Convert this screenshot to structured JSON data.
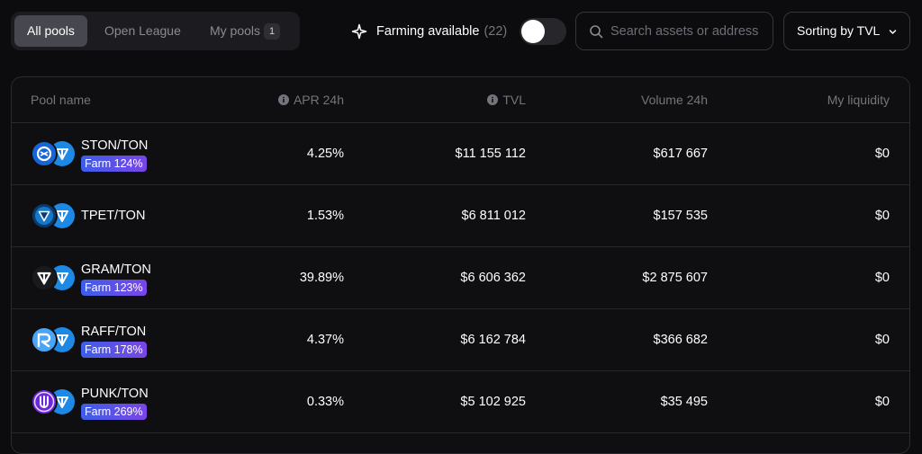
{
  "tabs": [
    {
      "label": "All pools",
      "active": true
    },
    {
      "label": "Open League",
      "active": false
    },
    {
      "label": "My pools",
      "active": false,
      "badge": "1"
    }
  ],
  "farming": {
    "label": "Farming available",
    "count": "(22)",
    "enabled": false
  },
  "search": {
    "placeholder": "Search assets or address"
  },
  "sort": {
    "label": "Sorting by TVL"
  },
  "columns": {
    "pool_name": "Pool name",
    "apr": "APR 24h",
    "tvl": "TVL",
    "volume": "Volume 24h",
    "liquidity": "My liquidity"
  },
  "pools": [
    {
      "pair": "STON/TON",
      "farm": "Farm 124%",
      "apr": "4.25%",
      "tvl": "$11 155 112",
      "volume": "$617 667",
      "liquidity": "$0",
      "icon": "ston-token-icon"
    },
    {
      "pair": "TPET/TON",
      "farm": "",
      "apr": "1.53%",
      "tvl": "$6 811 012",
      "volume": "$157 535",
      "liquidity": "$0",
      "icon": "tpet-token-icon"
    },
    {
      "pair": "GRAM/TON",
      "farm": "Farm 123%",
      "apr": "39.89%",
      "tvl": "$6 606 362",
      "volume": "$2 875 607",
      "liquidity": "$0",
      "icon": "gram-token-icon"
    },
    {
      "pair": "RAFF/TON",
      "farm": "Farm 178%",
      "apr": "4.37%",
      "tvl": "$6 162 784",
      "volume": "$366 682",
      "liquidity": "$0",
      "icon": "raff-token-icon"
    },
    {
      "pair": "PUNK/TON",
      "farm": "Farm 269%",
      "apr": "0.33%",
      "tvl": "$5 102 925",
      "volume": "$35 495",
      "liquidity": "$0",
      "icon": "punk-token-icon"
    }
  ],
  "colors": {
    "background": "#0c0c0e",
    "ton_blue": "#1e88e5",
    "farm_gradient_start": "#3d5ee8",
    "farm_gradient_end": "#7a45e6"
  }
}
